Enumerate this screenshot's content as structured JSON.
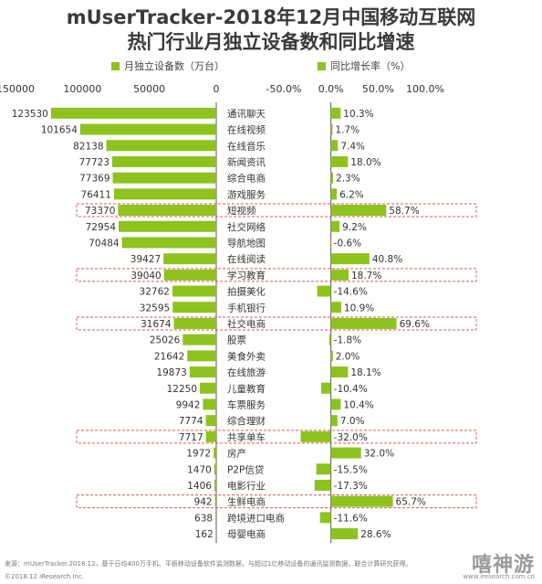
{
  "title_line1": "mUserTracker-2018年12月中国移动互联网",
  "title_line2": "热门行业月独立设备数和同比增速",
  "legend_left": "月独立设备数（万台）",
  "legend_right": "同比增长率（%）",
  "colors": {
    "bar": "#8dc21f",
    "highlight_border": "#e05a5a",
    "axis": "#555555"
  },
  "chart_data": [
    {
      "type": "bar",
      "orientation": "horizontal-reversed",
      "series_name": "月独立设备数（万台）",
      "xlim": [
        150000,
        0
      ],
      "ticks": [
        "150000",
        "100000",
        "50000",
        "0"
      ],
      "categories": [
        "通讯聊天",
        "在线视频",
        "在线音乐",
        "新闻资讯",
        "综合电商",
        "游戏服务",
        "短视频",
        "社交网络",
        "导航地图",
        "在线阅读",
        "学习教育",
        "拍摄美化",
        "手机银行",
        "社交电商",
        "股票",
        "美食外卖",
        "在线旅游",
        "儿童教育",
        "车票服务",
        "综合理财",
        "共享单车",
        "房产",
        "P2P信贷",
        "电影行业",
        "生鲜电商",
        "跨境进口电商",
        "母婴电商"
      ],
      "values": [
        123530,
        101654,
        82138,
        77723,
        77369,
        76411,
        73370,
        72954,
        70484,
        39427,
        39040,
        32762,
        32595,
        31674,
        25026,
        21642,
        19873,
        12250,
        9942,
        7774,
        7717,
        1972,
        1470,
        1406,
        942,
        638,
        162
      ],
      "value_labels": [
        "123530",
        "101654",
        "82138",
        "77723",
        "77369",
        "76411",
        "73370",
        "72954",
        "70484",
        "39427",
        "39040",
        "32762",
        "32595",
        "31674",
        "25026",
        "21642",
        "19873",
        "12250",
        "9942",
        "7774",
        "7717",
        "1972",
        "1470",
        "1406",
        "942",
        "638",
        "162"
      ]
    },
    {
      "type": "bar",
      "orientation": "horizontal",
      "series_name": "同比增长率（%）",
      "xlim": [
        -50,
        100
      ],
      "ticks": [
        "-50.0%",
        "0.0%",
        "50.0%",
        "100.0%"
      ],
      "categories": [
        "通讯聊天",
        "在线视频",
        "在线音乐",
        "新闻资讯",
        "综合电商",
        "游戏服务",
        "短视频",
        "社交网络",
        "导航地图",
        "在线阅读",
        "学习教育",
        "拍摄美化",
        "手机银行",
        "社交电商",
        "股票",
        "美食外卖",
        "在线旅游",
        "儿童教育",
        "车票服务",
        "综合理财",
        "共享单车",
        "房产",
        "P2P信贷",
        "电影行业",
        "生鲜电商",
        "跨境进口电商",
        "母婴电商"
      ],
      "values": [
        10.3,
        1.7,
        7.4,
        18.0,
        2.3,
        6.2,
        58.7,
        9.2,
        -0.6,
        40.8,
        18.7,
        -14.6,
        10.9,
        69.6,
        -1.8,
        2.0,
        18.1,
        -10.4,
        10.4,
        7.0,
        -32.0,
        32.0,
        -15.5,
        -17.3,
        65.7,
        -11.6,
        28.6
      ],
      "value_labels": [
        "10.3%",
        "1.7%",
        "7.4%",
        "18.0%",
        "2.3%",
        "6.2%",
        "58.7%",
        "9.2%",
        "-0.6%",
        "40.8%",
        "18.7%",
        "-14.6%",
        "10.9%",
        "69.6%",
        "-1.8%",
        "2.0%",
        "18.1%",
        "-10.4%",
        "10.4%",
        "7.0%",
        "-32.0%",
        "32.0%",
        "-15.5%",
        "-17.3%",
        "65.7%",
        "-11.6%",
        "28.6%"
      ]
    }
  ],
  "highlighted_categories": [
    "短视频",
    "学习教育",
    "社交电商",
    "共享单车",
    "生鲜电商"
  ],
  "footer_source": "来源：mUserTracker.2018.12，基于日均400万手机、平板移动设备软件监测数据，与超过1亿移动设备的通讯监测数据，联合计算研究获得。",
  "footer_copyright": "©2018.12 iResearch Inc.",
  "watermark": "嘻神游",
  "watermark_url": "www.iresearch.com.cn"
}
